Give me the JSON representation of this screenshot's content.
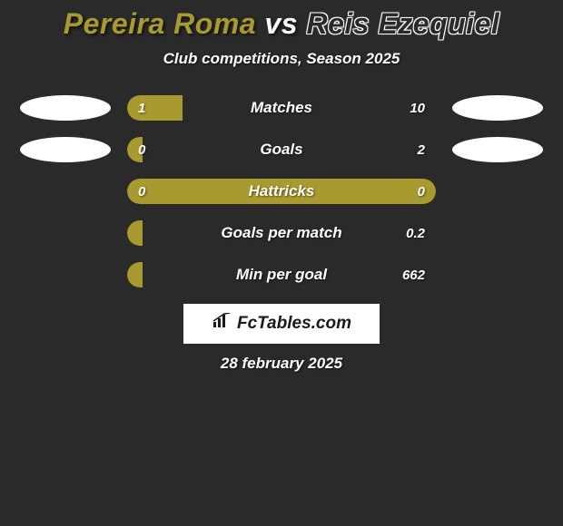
{
  "title": {
    "player1": "Pereira Roma",
    "vs": "vs",
    "player2": "Reis Ezequiel",
    "player1_color": "#a99a2f",
    "vs_color": "#ffffff",
    "player2_color": "#2a2a2a"
  },
  "subtitle": "Club competitions, Season 2025",
  "colors": {
    "left": "#a99a2f",
    "right": "#2a2a2a",
    "badge_left_bg_row1": "#ffffff",
    "badge_right_bg_row1": "#ffffff",
    "badge_left_bg_row2": "#ffffff",
    "badge_right_bg_row2": "#ffffff",
    "background": "#2a2a2a"
  },
  "rows": [
    {
      "label": "Matches",
      "left_val": "1",
      "right_val": "10",
      "left_pct": 18,
      "show_badges": true,
      "badge_left_color": "#ffffff",
      "badge_right_color": "#ffffff"
    },
    {
      "label": "Goals",
      "left_val": "0",
      "right_val": "2",
      "left_pct": 5,
      "show_badges": true,
      "badge_left_color": "#ffffff",
      "badge_right_color": "#ffffff"
    },
    {
      "label": "Hattricks",
      "left_val": "0",
      "right_val": "0",
      "left_pct": 100,
      "show_badges": false
    },
    {
      "label": "Goals per match",
      "left_val": "",
      "right_val": "0.2",
      "left_pct": 5,
      "show_badges": false
    },
    {
      "label": "Min per goal",
      "left_val": "",
      "right_val": "662",
      "left_pct": 5,
      "show_badges": false
    }
  ],
  "logo": {
    "text": "FcTables.com"
  },
  "date": "28 february 2025"
}
